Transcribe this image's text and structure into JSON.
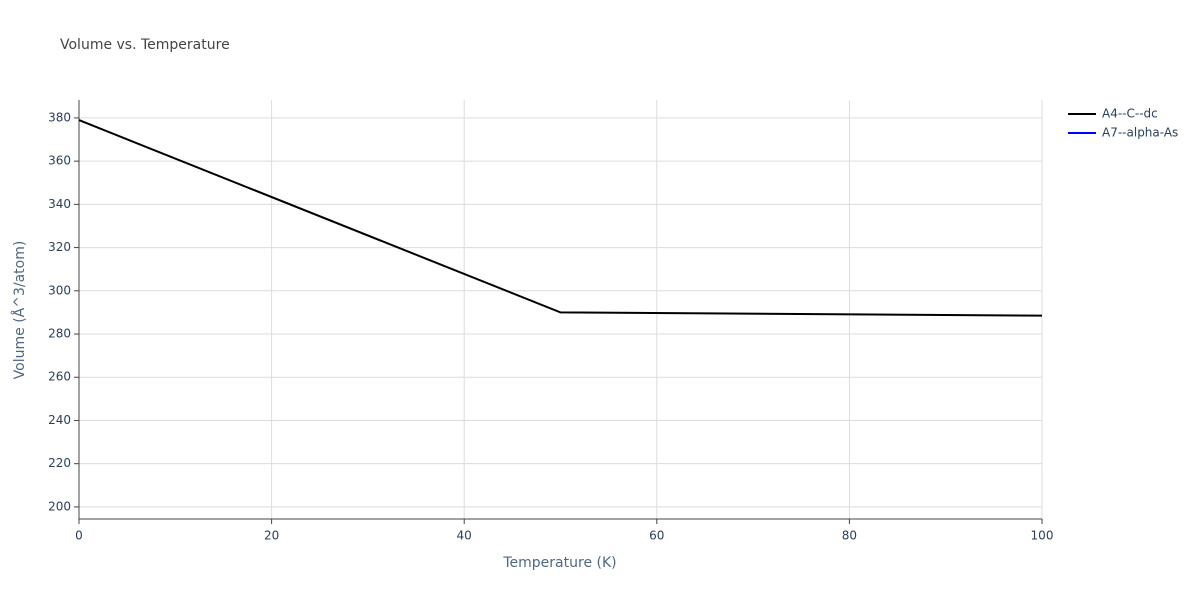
{
  "chart_data": {
    "type": "line",
    "title": "Volume vs. Temperature",
    "x_label": "Temperature (K)",
    "y_label": "Volume (Å^3/atom)",
    "x": [
      0,
      50,
      100
    ],
    "series": [
      {
        "name": "A4--C--dc",
        "color": "#000000",
        "values": [
          379,
          290,
          288.5
        ]
      },
      {
        "name": "A7--alpha-As",
        "color": "#0000ff",
        "values": [
          null,
          null,
          null
        ]
      }
    ],
    "xlim": [
      0,
      100
    ],
    "xticks": [
      0,
      20,
      40,
      60,
      80,
      100
    ],
    "ylim": [
      194.4,
      388.3
    ],
    "yticks": [
      200,
      220,
      240,
      260,
      280,
      300,
      320,
      340,
      360,
      380
    ],
    "grid": true,
    "legend": "outside-right"
  }
}
